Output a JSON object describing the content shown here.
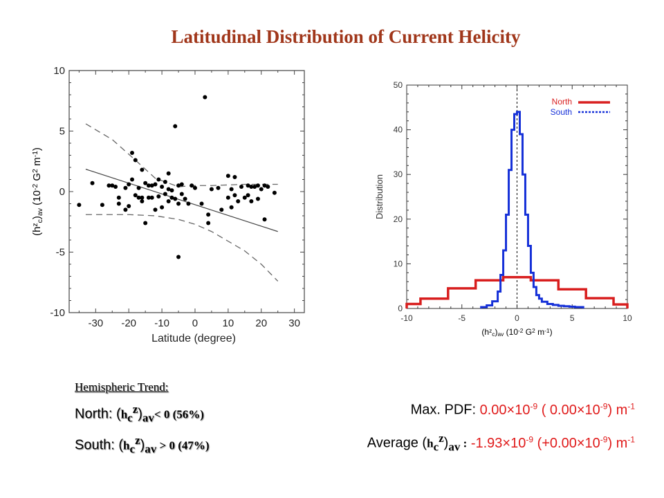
{
  "title": "Latitudinal Distribution of Current Helicity",
  "chart_data": [
    {
      "type": "scatter",
      "xlabel": "Latitude (degree)",
      "ylabel_parts": [
        "(h",
        "z",
        "c",
        ")",
        "av",
        " (10",
        "-2",
        " G",
        "2",
        " m",
        "-1",
        ")"
      ],
      "xlim": [
        -38,
        33
      ],
      "ylim": [
        -10,
        10
      ],
      "xticks": [
        "-30",
        "-20",
        "-10",
        "0",
        "10",
        "20",
        "30"
      ],
      "yticks": [
        "10",
        "5",
        "0",
        "-5",
        "-10"
      ],
      "grid": false,
      "points": [
        [
          -35,
          -1.1
        ],
        [
          -31,
          0.7
        ],
        [
          -28,
          -1.1
        ],
        [
          -26,
          0.5
        ],
        [
          -25,
          0.5
        ],
        [
          -24,
          0.4
        ],
        [
          -23,
          -0.5
        ],
        [
          -23,
          -1.0
        ],
        [
          -21,
          0.3
        ],
        [
          -21,
          -1.5
        ],
        [
          -20,
          -1.2
        ],
        [
          -20,
          0.6
        ],
        [
          -19,
          3.2
        ],
        [
          -19,
          1.0
        ],
        [
          -18,
          2.6
        ],
        [
          -18,
          -0.3
        ],
        [
          -17,
          -0.5
        ],
        [
          -17,
          0.3
        ],
        [
          -16,
          1.8
        ],
        [
          -16,
          -0.5
        ],
        [
          -16,
          -0.8
        ],
        [
          -15,
          0.7
        ],
        [
          -15,
          -2.6
        ],
        [
          -14,
          -0.5
        ],
        [
          -14,
          0.5
        ],
        [
          -13,
          0.5
        ],
        [
          -13,
          -0.5
        ],
        [
          -12,
          -1.5
        ],
        [
          -12,
          0.6
        ],
        [
          -11,
          1.0
        ],
        [
          -11,
          -0.4
        ],
        [
          -10,
          0.4
        ],
        [
          -10,
          -1.3
        ],
        [
          -9,
          0.8
        ],
        [
          -9,
          -0.2
        ],
        [
          -8,
          0.2
        ],
        [
          -8,
          -0.8
        ],
        [
          -8,
          1.5
        ],
        [
          -7,
          0.1
        ],
        [
          -7,
          -0.5
        ],
        [
          -6,
          5.4
        ],
        [
          -6,
          -0.6
        ],
        [
          -5,
          -1.0
        ],
        [
          -5,
          -5.4
        ],
        [
          -5,
          0.5
        ],
        [
          -4,
          -0.2
        ],
        [
          -4,
          0.6
        ],
        [
          -3,
          -0.6
        ],
        [
          -2,
          -1.0
        ],
        [
          -1,
          0.5
        ],
        [
          0,
          0.3
        ],
        [
          2,
          -1.0
        ],
        [
          3,
          7.8
        ],
        [
          4,
          -2.6
        ],
        [
          4,
          -1.9
        ],
        [
          5,
          0.2
        ],
        [
          7,
          0.3
        ],
        [
          8,
          -1.5
        ],
        [
          10,
          -0.5
        ],
        [
          10,
          1.3
        ],
        [
          11,
          -1.3
        ],
        [
          11,
          0.2
        ],
        [
          12,
          -0.3
        ],
        [
          12,
          1.2
        ],
        [
          13,
          -0.8
        ],
        [
          14,
          0.4
        ],
        [
          15,
          -0.5
        ],
        [
          16,
          -0.3
        ],
        [
          16,
          0.5
        ],
        [
          17,
          -0.8
        ],
        [
          17,
          0.4
        ],
        [
          18,
          0.4
        ],
        [
          19,
          -0.6
        ],
        [
          19,
          0.5
        ],
        [
          20,
          0.2
        ],
        [
          21,
          -2.3
        ],
        [
          21,
          0.5
        ],
        [
          22,
          0.4
        ],
        [
          24,
          -0.1
        ]
      ],
      "fit_line": [
        [
          -33,
          1.85
        ],
        [
          25,
          -3.3
        ]
      ],
      "upper_band": [
        [
          -33,
          5.6
        ],
        [
          -25,
          4.3
        ],
        [
          -18,
          2.6
        ],
        [
          -12,
          1.1
        ],
        [
          -5,
          0.4
        ],
        [
          0,
          0.5
        ],
        [
          5,
          0.5
        ],
        [
          15,
          0.6
        ],
        [
          25,
          0.6
        ]
      ],
      "lower_band": [
        [
          -33,
          -1.9
        ],
        [
          -25,
          -1.9
        ],
        [
          -20,
          -1.9
        ],
        [
          -12,
          -2.0
        ],
        [
          -5,
          -2.3
        ],
        [
          0,
          -2.7
        ],
        [
          5,
          -3.3
        ],
        [
          10,
          -4.1
        ],
        [
          15,
          -4.9
        ],
        [
          20,
          -6.0
        ],
        [
          25,
          -7.4
        ]
      ]
    },
    {
      "type": "line",
      "ylabel": "Distribution",
      "xlabel_parts": [
        "(h",
        "z",
        "c",
        ")",
        "av",
        " (10",
        "-2",
        " G",
        "2",
        " m",
        "-1",
        ")"
      ],
      "xlim": [
        -10,
        10
      ],
      "ylim": [
        0,
        50
      ],
      "xticks": [
        "-10",
        "-5",
        "0",
        "5",
        "10"
      ],
      "yticks": [
        "0",
        "10",
        "20",
        "30",
        "40",
        "50"
      ],
      "grid": false,
      "vline_x": 0,
      "series": [
        {
          "name": "North",
          "color": "#d81e1e",
          "edges": [
            -10,
            -8.75,
            -6.25,
            -3.75,
            -1.25,
            1.25,
            3.75,
            6.25,
            8.75,
            10
          ],
          "values": [
            1,
            2.2,
            4.5,
            6.3,
            7.0,
            6.3,
            4.3,
            2.3,
            0.9
          ]
        },
        {
          "name": "South",
          "color": "#1530d8",
          "edges": [
            -3.25,
            -2.75,
            -2.25,
            -1.75,
            -1.5,
            -1.25,
            -1.0,
            -0.75,
            -0.5,
            -0.25,
            0,
            0.25,
            0.5,
            0.75,
            1.0,
            1.25,
            1.5,
            1.75,
            2.0,
            2.25,
            2.75,
            3.25,
            3.75,
            4.25,
            4.75,
            5.25,
            6.0
          ],
          "values": [
            0.3,
            0.7,
            1.6,
            3.8,
            7.5,
            13,
            21,
            31,
            40,
            43.5,
            44,
            39,
            30,
            21,
            14,
            8,
            4.8,
            3.0,
            2.2,
            1.5,
            1.0,
            0.8,
            0.6,
            0.5,
            0.4,
            0.3
          ]
        }
      ]
    }
  ],
  "legend": {
    "north": "North",
    "south": "South"
  },
  "hemispheric_trend": {
    "heading": "Hemispheric Trend:",
    "north": {
      "label": "North: (",
      "h": "h",
      "sub_c": "c",
      "sup_z": "z",
      "close": ")",
      "sub_av": "av",
      "tail": "< 0  (56%)"
    },
    "south": {
      "label": "South: (",
      "h": "h",
      "sub_c": "c",
      "sup_z": "z",
      "close": ")",
      "sub_av": "av",
      "tail": " > 0  (47%)"
    }
  },
  "stats": {
    "max_pdf_label": "Max. PDF:",
    "max_pdf_value": "0.00×10",
    "max_pdf_exp": "-9",
    "max_pdf_paren": "( 0.00×10",
    "max_pdf_paren_exp": "-9",
    "max_pdf_unit": ") m",
    "max_pdf_unit_exp": "-1",
    "average_label": "Average (",
    "average_h": "h",
    "average_sub_c": "c",
    "average_sup_z": "z",
    "average_close": ")",
    "average_sub_av": "av",
    "average_colon": " :",
    "average_value": "-1.93×10",
    "average_exp": "-9",
    "average_paren": "(+0.00×10",
    "average_paren_exp": "-9",
    "average_unit": ") m",
    "average_unit_exp": "-1"
  }
}
